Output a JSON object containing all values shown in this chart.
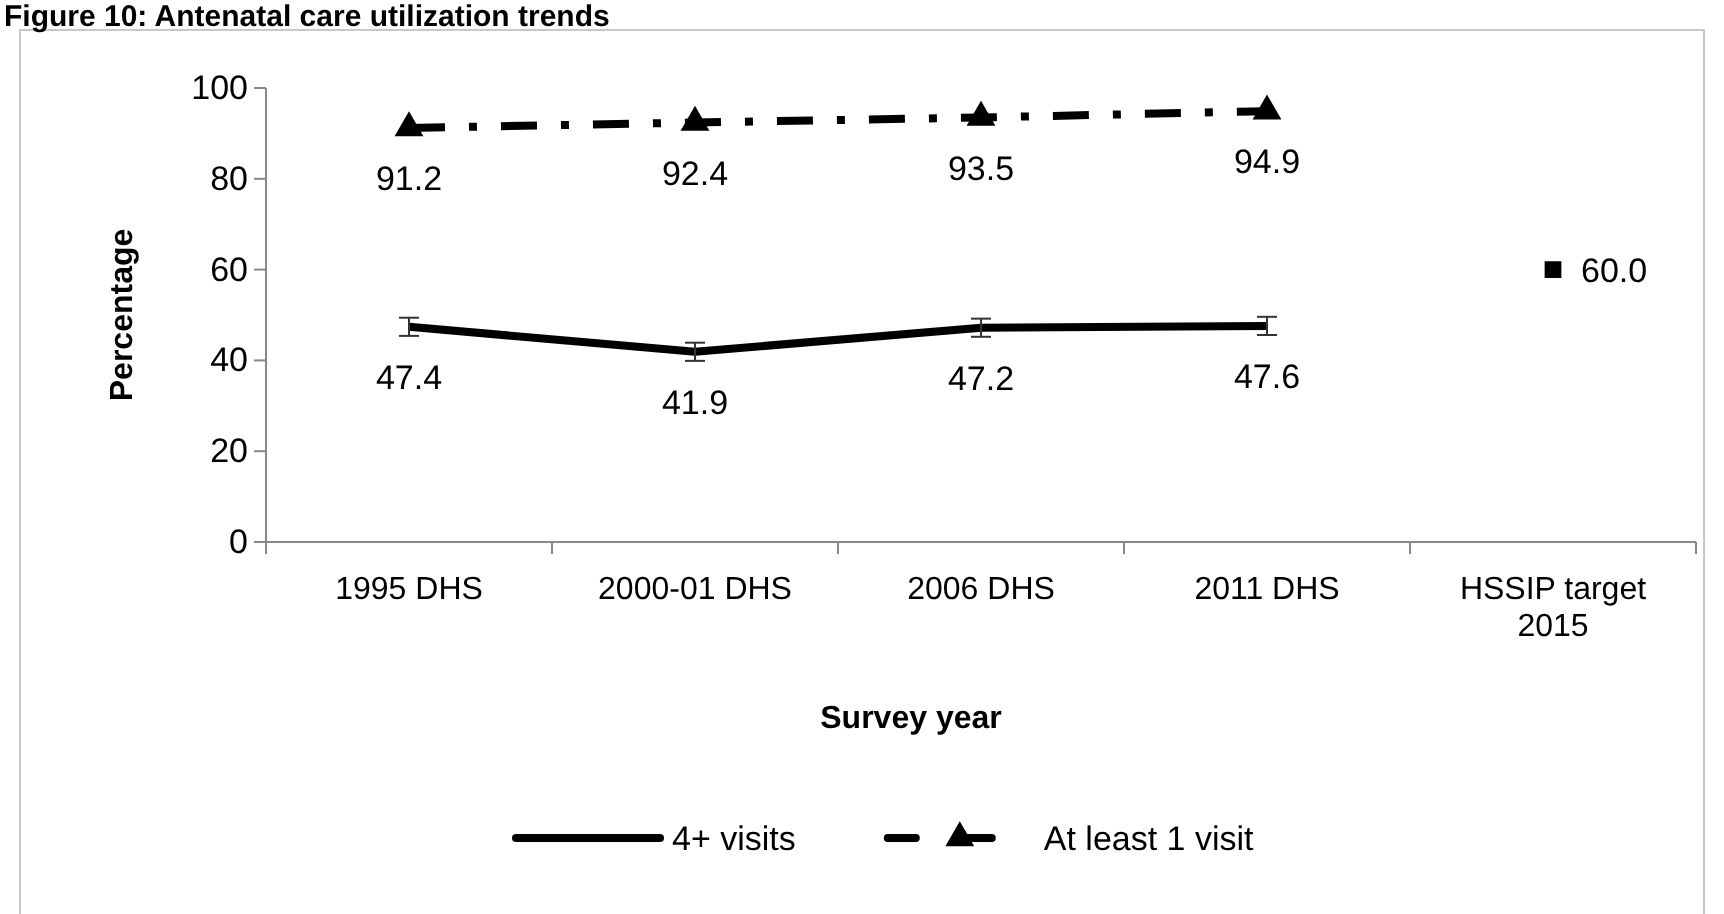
{
  "chart_data": {
    "type": "line",
    "title": "Figure 10: Antenatal care utilization trends",
    "xlabel": "Survey year",
    "ylabel": "Percentage",
    "categories": [
      "1995 DHS",
      "2000-01 DHS",
      "2006 DHS",
      "2011 DHS",
      "HSSIP target 2015"
    ],
    "ylim": [
      0,
      100
    ],
    "yticks": [
      0,
      20,
      40,
      60,
      80,
      100
    ],
    "grid": false,
    "legend": "bottom",
    "series": [
      {
        "name": "4+ visits",
        "color": "#000000",
        "line_style": "solid",
        "marker": "none",
        "values": [
          47.4,
          41.9,
          47.2,
          47.6,
          null
        ],
        "errors": [
          2,
          2,
          2,
          2,
          null
        ],
        "value_labels": [
          "47.4",
          "41.9",
          "47.2",
          "47.6",
          null
        ]
      },
      {
        "name": "At least 1 visit",
        "color": "#000000",
        "line_style": "dashed",
        "marker": "triangle",
        "values": [
          91.2,
          92.4,
          93.5,
          94.9,
          null
        ],
        "value_labels": [
          "91.2",
          "92.4",
          "93.5",
          "94.9",
          null
        ]
      },
      {
        "type": "scatter",
        "color": "#000000",
        "marker": "square",
        "values": [
          null,
          null,
          null,
          null,
          60.0
        ],
        "value_labels": [
          null,
          null,
          null,
          null,
          "60.0"
        ]
      }
    ]
  }
}
